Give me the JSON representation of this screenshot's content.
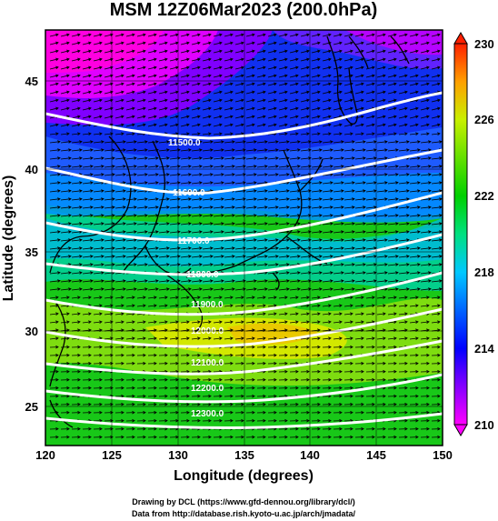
{
  "title": "MSM 12Z06Mar2023 (200.0hPa)",
  "xlabel": "Longitude (degrees)",
  "ylabel": "Latitude  (degrees)",
  "x_ticks": [
    "120",
    "125",
    "130",
    "135",
    "140",
    "145",
    "150"
  ],
  "y_ticks": [
    "25",
    "30",
    "35",
    "40",
    "45"
  ],
  "colorbar_ticks": [
    "210",
    "214",
    "218",
    "222",
    "226",
    "230"
  ],
  "credits": {
    "line1": "Drawing by DCL (https://www.gfd-dennou.org/library/dcl/)",
    "line2": "Data from http://database.rish.kyoto-u.ac.jp/arch/jmadata/"
  },
  "contour_labels": [
    "11500.0",
    "11600.0",
    "11700.0",
    "11800.0",
    "11900.0",
    "12000.0",
    "12100.0",
    "12200.0",
    "12300.0"
  ],
  "chart_data": {
    "type": "heatmap",
    "title": "MSM 12Z06Mar2023 (200.0hPa)",
    "xlabel": "Longitude (degrees)",
    "ylabel": "Latitude  (degrees)",
    "xlim": [
      120,
      150
    ],
    "ylim": [
      22.4,
      47.6
    ],
    "colorbar_range": [
      210,
      230
    ],
    "colorbar_ticks": [
      210,
      214,
      218,
      222,
      226,
      230
    ],
    "colormap": [
      "#ff00ff",
      "#0000ff",
      "#00c8ff",
      "#00d000",
      "#c8f000",
      "#ff8000",
      "#ff2000"
    ],
    "field_samples": [
      {
        "lon": 122,
        "lat": 46,
        "value": 210
      },
      {
        "lon": 140,
        "lat": 44,
        "value": 213
      },
      {
        "lon": 125,
        "lat": 38,
        "value": 215
      },
      {
        "lon": 135,
        "lat": 36,
        "value": 218
      },
      {
        "lon": 122,
        "lat": 32,
        "value": 220
      },
      {
        "lon": 137,
        "lat": 30,
        "value": 225
      },
      {
        "lon": 145,
        "lat": 30,
        "value": 223
      },
      {
        "lon": 130,
        "lat": 25,
        "value": 222
      }
    ],
    "wind_vectors": "west-to-east (from west-southwest), strongest 30-40N",
    "coastlines": true
  }
}
